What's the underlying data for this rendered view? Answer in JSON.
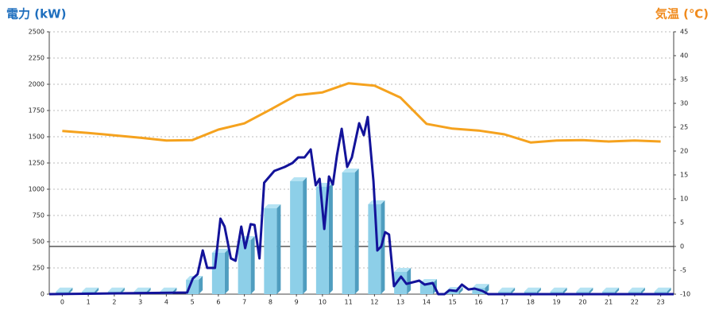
{
  "chart_data": {
    "type": "combo",
    "y_label": "電力 (kW)",
    "y2_label": "気温 (℃)",
    "xlim": [
      -0.5,
      23.5
    ],
    "xticks": [
      0,
      1,
      2,
      3,
      4,
      5,
      6,
      7,
      8,
      9,
      10,
      11,
      12,
      13,
      14,
      15,
      16,
      17,
      18,
      19,
      20,
      21,
      22,
      23
    ],
    "ylim": [
      0,
      2500
    ],
    "yticks": [
      0,
      250,
      500,
      750,
      1000,
      1250,
      1500,
      1750,
      2000,
      2250,
      2500
    ],
    "y2lim": [
      -10,
      45
    ],
    "y2ticks": [
      -10,
      -5,
      0,
      5,
      10,
      15,
      20,
      25,
      30,
      35,
      40,
      45
    ],
    "grid": true,
    "series": [
      {
        "type": "bar",
        "color": "#8dcfe8",
        "x": [
          0,
          1,
          2,
          3,
          4,
          5,
          6,
          7,
          8,
          9,
          10,
          11,
          12,
          13,
          14,
          15,
          16,
          17,
          18,
          19,
          20,
          21,
          22,
          23
        ],
        "values": [
          25,
          25,
          25,
          25,
          25,
          136,
          394,
          515,
          818,
          1076,
          1023,
          1159,
          856,
          212,
          106,
          30,
          60,
          25,
          25,
          25,
          25,
          25,
          25,
          25
        ]
      },
      {
        "type": "line",
        "color": "#13139a",
        "x": [
          -0.5,
          4.8,
          5.02,
          5.2,
          5.4,
          5.57,
          5.87,
          6.08,
          6.24,
          6.48,
          6.66,
          6.88,
          7.03,
          7.24,
          7.39,
          7.58,
          7.76,
          8.15,
          8.55,
          8.85,
          9.07,
          9.31,
          9.55,
          9.74,
          9.89,
          10.07,
          10.25,
          10.4,
          10.56,
          10.74,
          10.95,
          11.13,
          11.41,
          11.59,
          11.74,
          11.96,
          12.11,
          12.26,
          12.41,
          12.56,
          12.75,
          13.02,
          13.23,
          13.48,
          13.72,
          13.93,
          14.24,
          14.45,
          14.69,
          14.88,
          15.15,
          15.36,
          15.61,
          15.85,
          16.15,
          16.37,
          23.5
        ],
        "values": [
          0,
          15,
          150,
          190,
          417,
          250,
          250,
          720,
          644,
          341,
          318,
          644,
          439,
          667,
          659,
          341,
          1061,
          1174,
          1212,
          1250,
          1303,
          1303,
          1379,
          1038,
          1099,
          621,
          1121,
          1045,
          1326,
          1576,
          1212,
          1303,
          1629,
          1515,
          1689,
          1076,
          417,
          455,
          591,
          568,
          76,
          167,
          98,
          114,
          129,
          91,
          106,
          0,
          0,
          38,
          30,
          91,
          45,
          53,
          30,
          0,
          0
        ]
      },
      {
        "type": "line",
        "color": "#f5a21e",
        "axis": "y2",
        "x": [
          0,
          1,
          2,
          3,
          4,
          5,
          6,
          7,
          8,
          9,
          10,
          11,
          12,
          13,
          14,
          15,
          16,
          17,
          18,
          19,
          20,
          21,
          22,
          23
        ],
        "values": [
          24.2,
          23.8,
          23.3,
          22.8,
          22.2,
          22.3,
          24.5,
          25.8,
          28.7,
          31.7,
          32.3,
          34.2,
          33.7,
          31.2,
          25.7,
          24.7,
          24.3,
          23.5,
          21.8,
          22.2,
          22.3,
          22.0,
          22.2,
          22.0
        ]
      }
    ]
  }
}
